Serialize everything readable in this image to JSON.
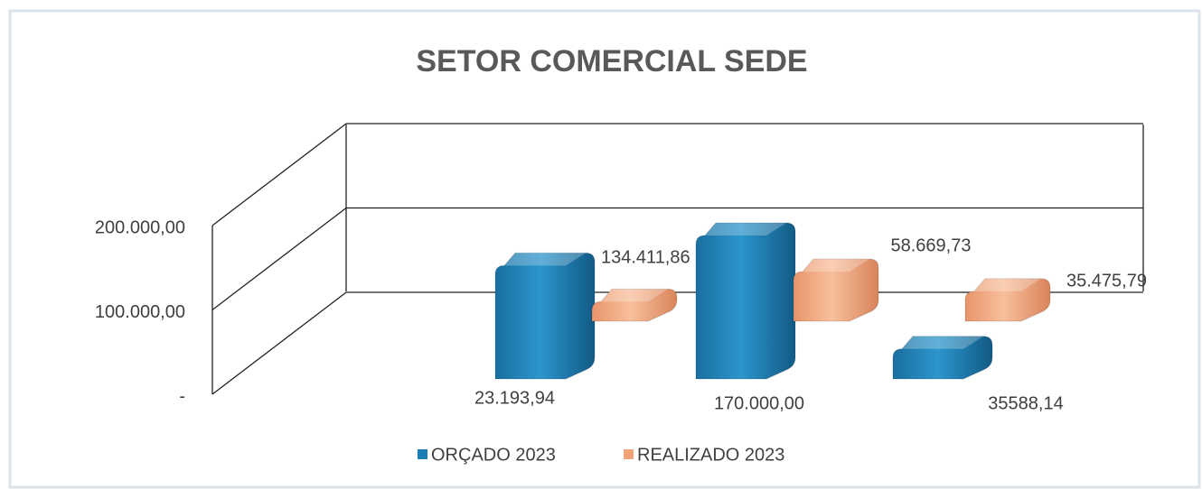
{
  "chart_data": {
    "type": "bar3d",
    "title": "SETOR COMERCIAL SEDE",
    "categories": [
      null,
      null,
      null
    ],
    "series": [
      {
        "name": "ORÇADO 2023",
        "color": "#1b7db4",
        "values": [
          134411.86,
          170000,
          35588.14
        ],
        "value_labels": [
          "134.411,86",
          "170.000,00",
          "35588,14"
        ]
      },
      {
        "name": "REALIZADO 2023",
        "color": "#f2a37a",
        "values": [
          23193.94,
          58669.73,
          35475.79
        ],
        "value_labels": [
          "23.193,94",
          "58.669,73",
          "35.475,79"
        ]
      }
    ],
    "ylim": [
      0,
      200000
    ],
    "yticks": [
      {
        "value": 0,
        "label": "-"
      },
      {
        "value": 100000,
        "label": "100.000,00"
      },
      {
        "value": 200000,
        "label": "200.000,00"
      }
    ],
    "grid": true,
    "legend": "bottom"
  }
}
